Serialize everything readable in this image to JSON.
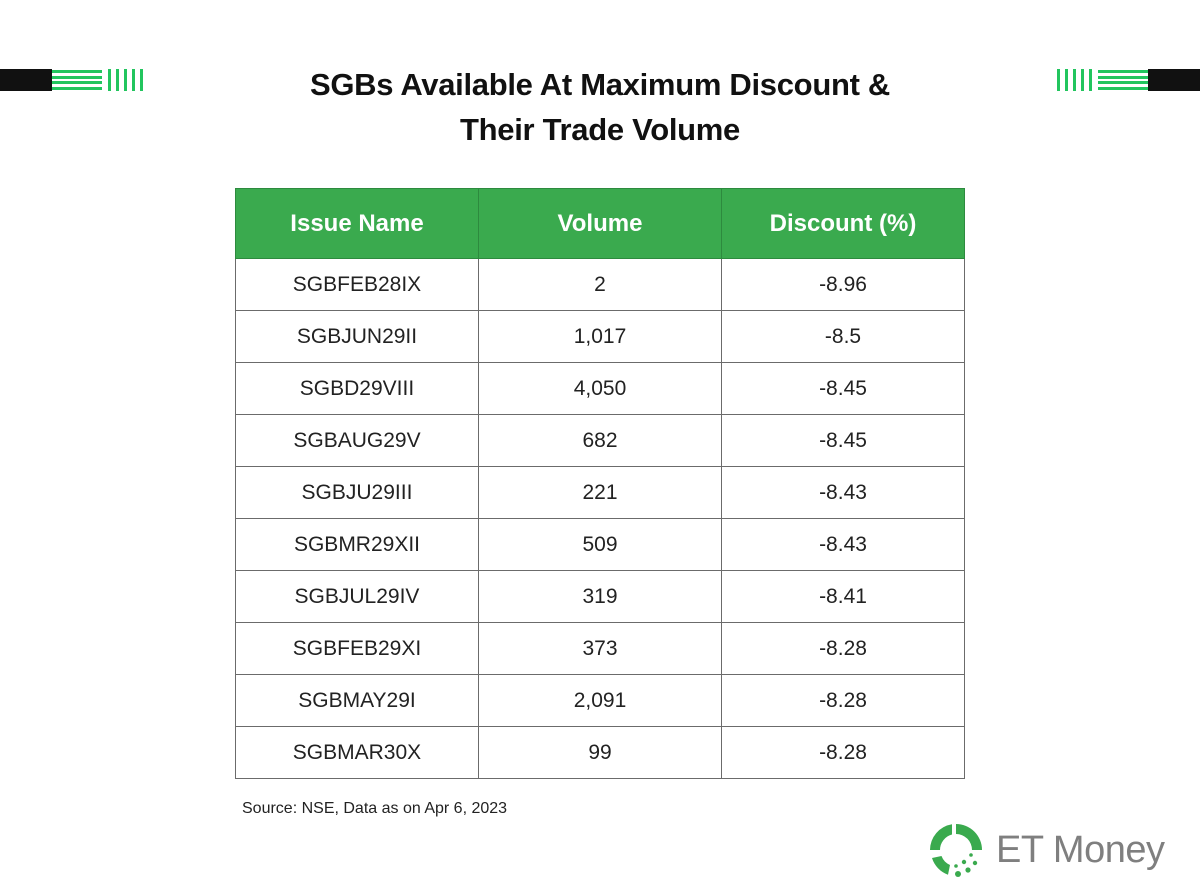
{
  "title_line1": "SGBs Available At Maximum Discount &",
  "title_line2": "Their Trade Volume",
  "chart_data": {
    "type": "table",
    "columns": [
      "Issue Name",
      "Volume",
      "Discount (%)"
    ],
    "rows": [
      [
        "SGBFEB28IX",
        "2",
        "-8.96"
      ],
      [
        "SGBJUN29II",
        "1,017",
        "-8.5"
      ],
      [
        "SGBD29VIII",
        "4,050",
        "-8.45"
      ],
      [
        "SGBAUG29V",
        "682",
        "-8.45"
      ],
      [
        "SGBJU29III",
        "221",
        "-8.43"
      ],
      [
        "SGBMR29XII",
        "509",
        "-8.43"
      ],
      [
        "SGBJUL29IV",
        "319",
        "-8.41"
      ],
      [
        "SGBFEB29XI",
        "373",
        "-8.28"
      ],
      [
        "SGBMAY29I",
        "2,091",
        "-8.28"
      ],
      [
        "SGBMAR30X",
        "99",
        "-8.28"
      ]
    ]
  },
  "source": "Source: NSE, Data as on Apr 6, 2023",
  "logo_text": "ET Money",
  "colors": {
    "header_green": "#3aaa4e",
    "accent_green": "#22c55e",
    "logo_green": "#3aaa4e"
  }
}
